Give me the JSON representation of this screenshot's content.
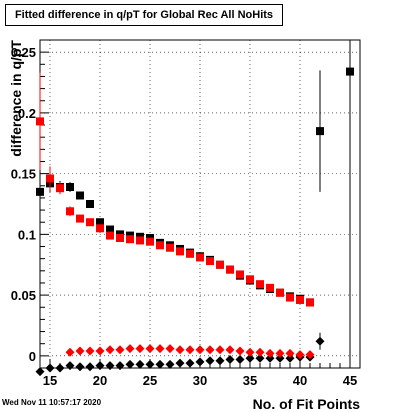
{
  "title": "Fitted difference in q/pT for Global Rec All NoHits",
  "datestamp": "Wed Nov 11 10:57:17 2020",
  "chart_data": {
    "type": "scatter",
    "xlabel": "No. of Fit Points",
    "ylabel": "difference in q/pT",
    "xlim": [
      14,
      46
    ],
    "ylim": [
      -0.01,
      0.26
    ],
    "x_ticks": [
      15,
      20,
      25,
      30,
      35,
      40,
      45
    ],
    "x_tick_labels": [
      "15",
      "20",
      "25",
      "30",
      "35",
      "40",
      "45"
    ],
    "y_ticks": [
      0,
      0.05,
      0.1,
      0.15,
      0.2,
      0.25
    ],
    "y_tick_labels": [
      "0",
      "0.05",
      "0.1",
      "0.15",
      "0.2",
      "0.25"
    ],
    "grid": true,
    "series": [
      {
        "color": "#000000",
        "marker": "square",
        "x": [
          14,
          15,
          16,
          17,
          18,
          19,
          20,
          21,
          22,
          23,
          24,
          25,
          26,
          27,
          28,
          29,
          30,
          31,
          32,
          33,
          34,
          35,
          36,
          37,
          38,
          39,
          40,
          41,
          42,
          45
        ],
        "y": [
          0.135,
          0.142,
          0.139,
          0.139,
          0.132,
          0.125,
          0.11,
          0.104,
          0.1,
          0.099,
          0.098,
          0.097,
          0.093,
          0.091,
          0.088,
          0.085,
          0.082,
          0.079,
          0.075,
          0.071,
          0.066,
          0.062,
          0.058,
          0.055,
          0.052,
          0.049,
          0.047,
          0.044,
          0.185,
          0.234
        ],
        "yerr": [
          0.013,
          0.007,
          0.005,
          0.004,
          0.003,
          0.003,
          0.002,
          0.002,
          0.002,
          0.002,
          0.002,
          0.002,
          0.002,
          0.002,
          0.002,
          0.002,
          0.002,
          0.002,
          0.002,
          0.002,
          0.002,
          0.002,
          0.002,
          0.002,
          0.002,
          0.002,
          0.002,
          0.002,
          0.05,
          0.24
        ]
      },
      {
        "color": "#ff0000",
        "marker": "square",
        "x": [
          14,
          15,
          16,
          17,
          18,
          19,
          20,
          21,
          22,
          23,
          24,
          25,
          26,
          27,
          28,
          29,
          30,
          31,
          32,
          33,
          34,
          35,
          36,
          37,
          38,
          39,
          40,
          41
        ],
        "y": [
          0.193,
          0.146,
          0.138,
          0.119,
          0.113,
          0.11,
          0.105,
          0.099,
          0.097,
          0.096,
          0.095,
          0.094,
          0.091,
          0.089,
          0.086,
          0.084,
          0.081,
          0.078,
          0.075,
          0.071,
          0.067,
          0.063,
          0.059,
          0.056,
          0.052,
          0.048,
          0.046,
          0.044
        ],
        "yerr": [
          0.04,
          0.01,
          0.005,
          0.004,
          0.003,
          0.003,
          0.002,
          0.002,
          0.002,
          0.002,
          0.002,
          0.002,
          0.002,
          0.002,
          0.002,
          0.002,
          0.002,
          0.002,
          0.002,
          0.002,
          0.002,
          0.002,
          0.002,
          0.002,
          0.002,
          0.002,
          0.002,
          0.002
        ]
      },
      {
        "color": "#000000",
        "marker": "diamond",
        "x": [
          14,
          15,
          16,
          17,
          18,
          19,
          20,
          21,
          22,
          23,
          24,
          25,
          26,
          27,
          28,
          29,
          30,
          31,
          32,
          33,
          34,
          35,
          36,
          37,
          38,
          39,
          40,
          41,
          42
        ],
        "y": [
          -0.013,
          -0.01,
          -0.01,
          -0.008,
          -0.009,
          -0.009,
          -0.008,
          -0.008,
          -0.008,
          -0.007,
          -0.007,
          -0.007,
          -0.007,
          -0.007,
          -0.006,
          -0.006,
          -0.005,
          -0.004,
          -0.004,
          -0.003,
          -0.003,
          -0.002,
          -0.002,
          -0.002,
          -0.002,
          -0.002,
          -0.001,
          -0.001,
          0.012
        ],
        "yerr": [
          0.006,
          0.002,
          0.001,
          0.001,
          0.001,
          0.001,
          0.001,
          0.001,
          0.001,
          0.001,
          0.001,
          0.001,
          0.001,
          0.001,
          0.001,
          0.001,
          0.001,
          0.001,
          0.001,
          0.001,
          0.001,
          0.001,
          0.001,
          0.001,
          0.001,
          0.001,
          0.001,
          0.001,
          0.007
        ]
      },
      {
        "color": "#ff0000",
        "marker": "diamond",
        "x": [
          17,
          18,
          19,
          20,
          21,
          22,
          23,
          24,
          25,
          26,
          27,
          28,
          29,
          30,
          31,
          32,
          33,
          34,
          35,
          36,
          37,
          38,
          39,
          40,
          41
        ],
        "y": [
          0.003,
          0.004,
          0.004,
          0.004,
          0.005,
          0.005,
          0.006,
          0.006,
          0.006,
          0.006,
          0.006,
          0.005,
          0.005,
          0.005,
          0.005,
          0.005,
          0.005,
          0.004,
          0.003,
          0.003,
          0.002,
          0.002,
          0.002,
          0.001,
          0.001
        ],
        "yerr": [
          0.001,
          0.001,
          0.001,
          0.001,
          0.001,
          0.001,
          0.001,
          0.001,
          0.001,
          0.001,
          0.001,
          0.001,
          0.001,
          0.001,
          0.001,
          0.001,
          0.001,
          0.001,
          0.001,
          0.001,
          0.001,
          0.001,
          0.001,
          0.001,
          0.001
        ]
      }
    ]
  }
}
